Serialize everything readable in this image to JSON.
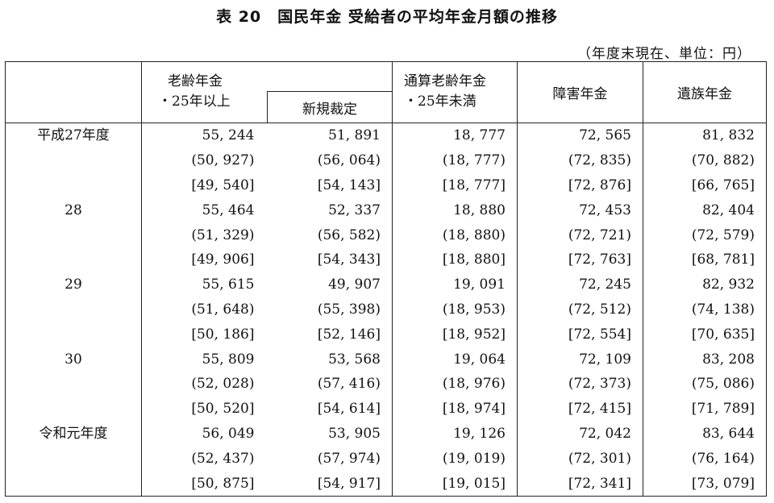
{
  "title": "表 20　国民年金 受給者の平均年金月額の推移",
  "unit_note": "（年度末現在、単位：円）",
  "headers": {
    "col1_line1": "老齢年金",
    "col1_line2": "・25年以上",
    "col1_sub": "新規裁定",
    "col3_line1": "通算老齢年金",
    "col3_line2": "・25年未満",
    "col4": "障害年金",
    "col5": "遺族年金"
  },
  "rows": [
    {
      "year": "平成27年度",
      "cells": [
        "55, 244",
        "51, 891",
        "18, 777",
        "72, 565",
        "81, 832"
      ]
    },
    {
      "year": "",
      "cells": [
        "(50, 927)",
        "(56, 064)",
        "(18, 777)",
        "(72, 835)",
        "(70, 882)"
      ]
    },
    {
      "year": "",
      "cells": [
        "[49, 540]",
        "[54, 143]",
        "[18, 777]",
        "[72, 876]",
        "[66, 765]"
      ]
    },
    {
      "year": "28",
      "cells": [
        "55, 464",
        "52, 337",
        "18, 880",
        "72, 453",
        "82, 404"
      ]
    },
    {
      "year": "",
      "cells": [
        "(51, 329)",
        "(56, 582)",
        "(18, 880)",
        "(72, 721)",
        "(72, 579)"
      ]
    },
    {
      "year": "",
      "cells": [
        "[49, 906]",
        "[54, 343]",
        "[18, 880]",
        "[72, 763]",
        "[68, 781]"
      ]
    },
    {
      "year": "29",
      "cells": [
        "55, 615",
        "49, 907",
        "19, 091",
        "72, 245",
        "82, 932"
      ]
    },
    {
      "year": "",
      "cells": [
        "(51, 648)",
        "(55, 398)",
        "(18, 953)",
        "(72, 512)",
        "(74, 138)"
      ]
    },
    {
      "year": "",
      "cells": [
        "[50, 186]",
        "[52, 146]",
        "[18, 952]",
        "[72, 554]",
        "[70, 635]"
      ]
    },
    {
      "year": "30",
      "cells": [
        "55, 809",
        "53, 568",
        "19, 064",
        "72, 109",
        "83, 208"
      ]
    },
    {
      "year": "",
      "cells": [
        "(52, 028)",
        "(57, 416)",
        "(18, 976)",
        "(72, 373)",
        "(75, 086)"
      ]
    },
    {
      "year": "",
      "cells": [
        "[50, 520]",
        "[54, 614]",
        "[18, 974]",
        "[72, 415]",
        "[71, 789]"
      ]
    },
    {
      "year": "令和元年度",
      "cells": [
        "56, 049",
        "53, 905",
        "19, 126",
        "72, 042",
        "83, 644"
      ]
    },
    {
      "year": "",
      "cells": [
        "(52, 437)",
        "(57, 974)",
        "(19, 019)",
        "(72, 301)",
        "(76, 164)"
      ]
    },
    {
      "year": "",
      "cells": [
        "[50, 875]",
        "[54, 917]",
        "[19, 015]",
        "[72, 341]",
        "[73, 079]"
      ]
    }
  ]
}
